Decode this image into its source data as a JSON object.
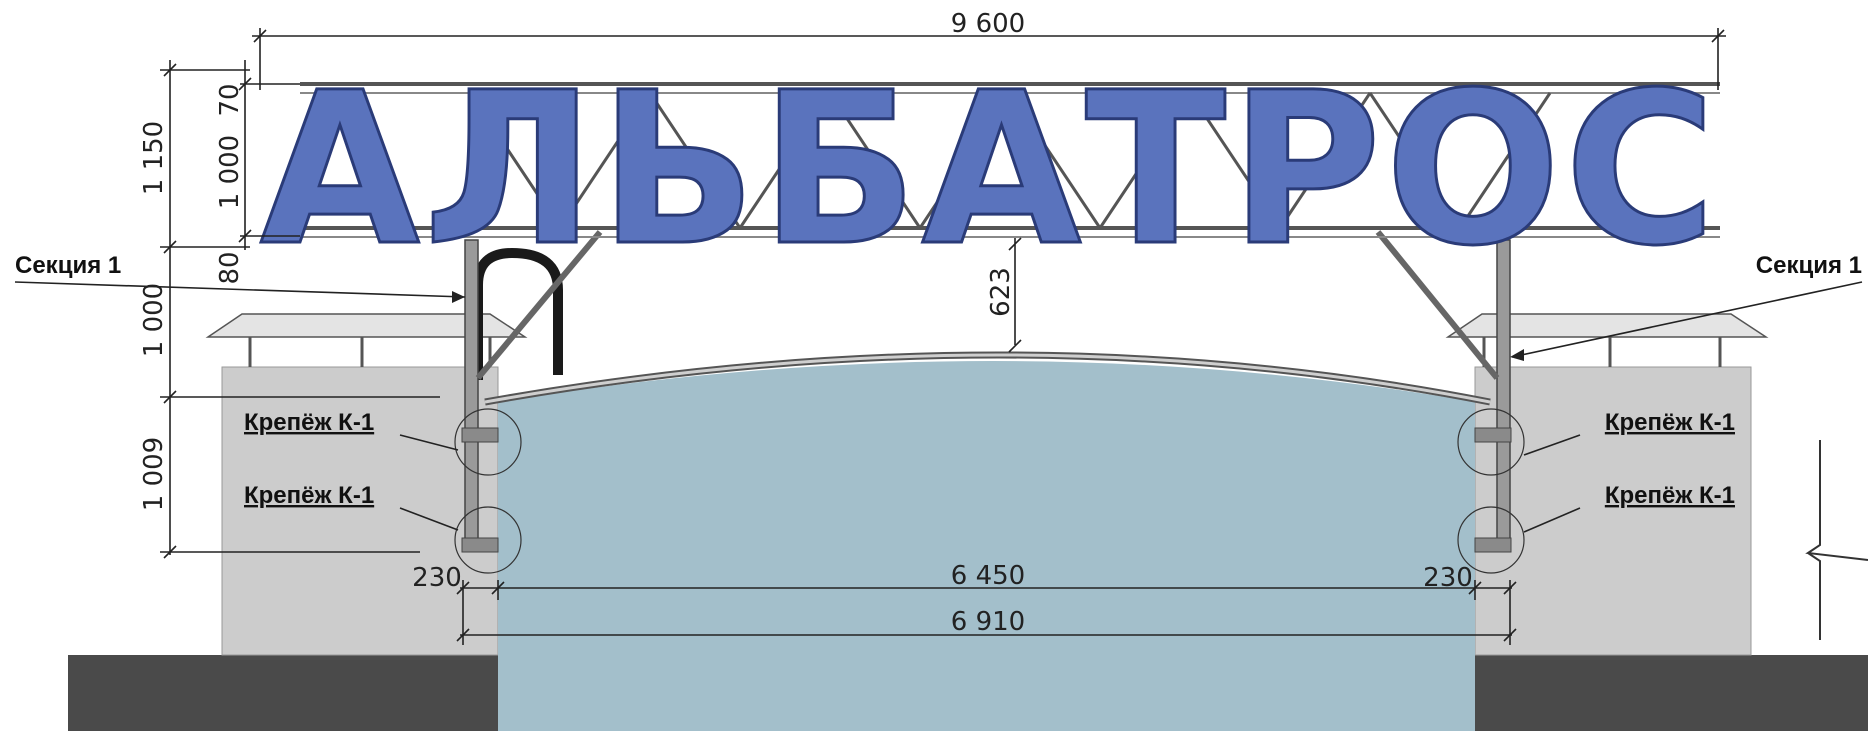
{
  "sign": {
    "text": "АЛЬБАТРОС"
  },
  "labels": {
    "section_left": "Секция 1",
    "section_right": "Секция 1",
    "fastener_left_top": "Крепёж К-1",
    "fastener_left_bottom": "Крепёж К-1",
    "fastener_right_top": "Крепёж К-1",
    "fastener_right_bottom": "Крепёж К-1"
  },
  "dimensions": {
    "overall_width": "9 600",
    "total_height": "1 150",
    "top_offset": "70",
    "letter_height": "1 000",
    "bottom_offset": "80",
    "support_height": "1 000",
    "mount_height": "1 009",
    "arch_clearance": "623",
    "side_left": "230",
    "side_right": "230",
    "inner_width": "6 450",
    "outer_width": "6 910"
  },
  "colors": {
    "letters": "#5a73bd",
    "water": "#a3bfcb",
    "wall": "#cccccc",
    "ground": "#4a4a4a",
    "roof": "#e4e4e4"
  }
}
